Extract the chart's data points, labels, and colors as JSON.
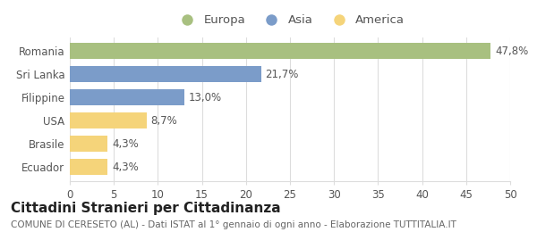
{
  "categories": [
    "Romania",
    "Sri Lanka",
    "Filippine",
    "USA",
    "Brasile",
    "Ecuador"
  ],
  "values": [
    47.8,
    21.7,
    13.0,
    8.7,
    4.3,
    4.3
  ],
  "labels": [
    "47,8%",
    "21,7%",
    "13,0%",
    "8,7%",
    "4,3%",
    "4,3%"
  ],
  "colors": [
    "#a8c080",
    "#7b9cc9",
    "#7b9cc9",
    "#f5d47a",
    "#f5d47a",
    "#f5d47a"
  ],
  "legend": [
    {
      "label": "Europa",
      "color": "#a8c080"
    },
    {
      "label": "Asia",
      "color": "#7b9cc9"
    },
    {
      "label": "America",
      "color": "#f5d47a"
    }
  ],
  "xlim": [
    0,
    50
  ],
  "xticks": [
    0,
    5,
    10,
    15,
    20,
    25,
    30,
    35,
    40,
    45,
    50
  ],
  "title": "Cittadini Stranieri per Cittadinanza",
  "subtitle": "COMUNE DI CERESETO (AL) - Dati ISTAT al 1° gennaio di ogni anno - Elaborazione TUTTITALIA.IT",
  "bg_color": "#ffffff",
  "bar_height": 0.68,
  "title_fontsize": 11,
  "subtitle_fontsize": 7.5,
  "legend_fontsize": 9.5,
  "tick_fontsize": 8.5,
  "label_fontsize": 8.5
}
